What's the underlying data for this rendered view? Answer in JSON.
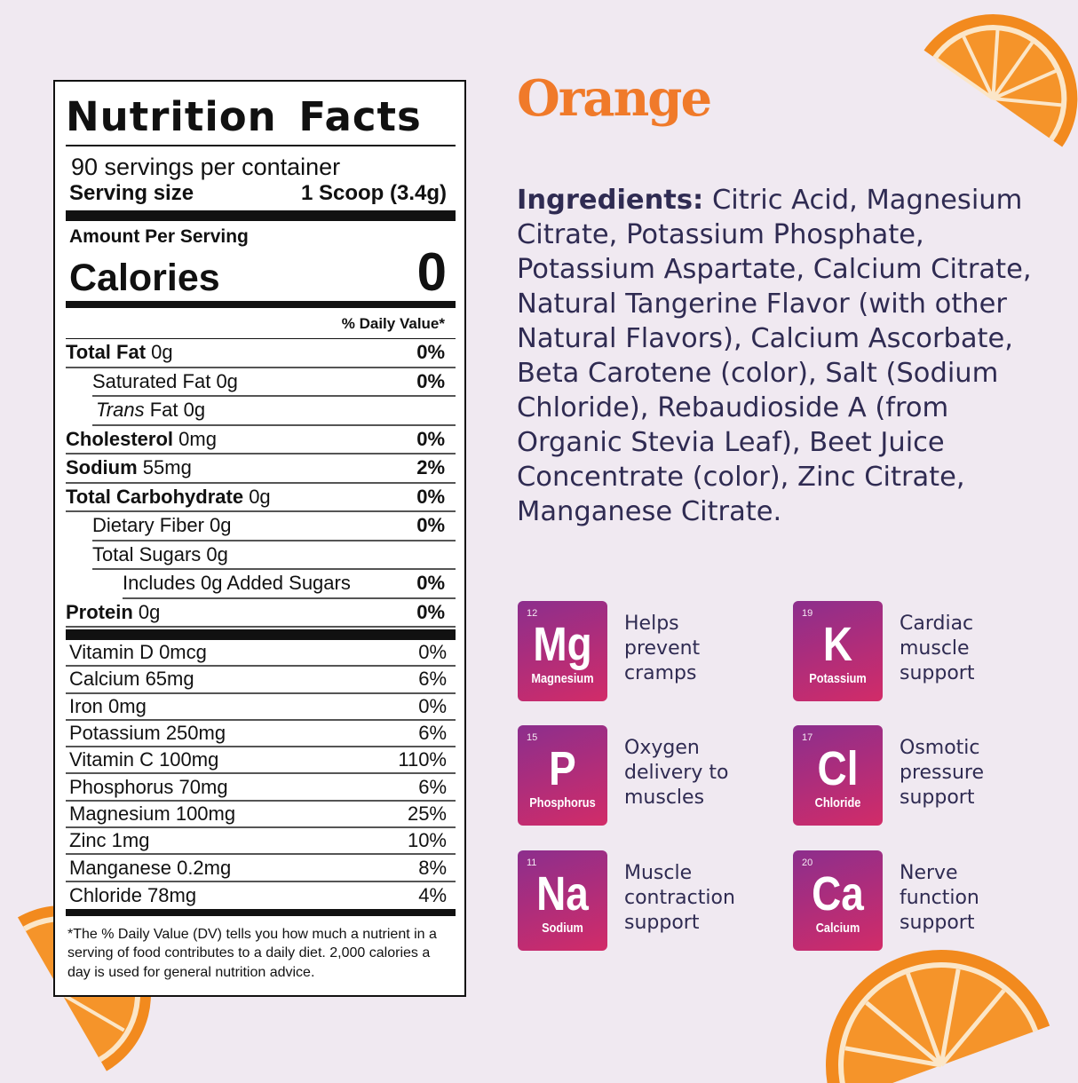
{
  "label": {
    "title": "Nutrition Facts",
    "servings": "90 servings per container",
    "serving_size_label": "Serving size",
    "serving_size_value": "1 Scoop (3.4g)",
    "amount_per_serving": "Amount Per Serving",
    "calories_label": "Calories",
    "calories_value": "0",
    "daily_value_header": "% Daily Value*",
    "nutrients": [
      {
        "name": "Total Fat",
        "amount": "0g",
        "dv": "0%"
      },
      {
        "name": "Saturated Fat",
        "amount": "0g",
        "dv": "0%"
      },
      {
        "name": "Trans",
        "amount": "Fat 0g",
        "dv": ""
      },
      {
        "name": "Cholesterol",
        "amount": "0mg",
        "dv": "0%"
      },
      {
        "name": "Sodium",
        "amount": "55mg",
        "dv": "2%"
      },
      {
        "name": "Total Carbohydrate",
        "amount": "0g",
        "dv": "0%"
      },
      {
        "name": "Dietary Fiber",
        "amount": "0g",
        "dv": "0%"
      },
      {
        "name": "Total Sugars",
        "amount": "0g",
        "dv": ""
      },
      {
        "name": "Includes 0g Added Sugars",
        "amount": "",
        "dv": "0%"
      },
      {
        "name": "Protein",
        "amount": "0g",
        "dv": "0%"
      }
    ],
    "vitamins": [
      {
        "name": "Vitamin D 0mcg",
        "dv": "0%"
      },
      {
        "name": "Calcium 65mg",
        "dv": "6%"
      },
      {
        "name": "Iron 0mg",
        "dv": "0%"
      },
      {
        "name": "Potassium 250mg",
        "dv": "6%"
      },
      {
        "name": "Vitamin C 100mg",
        "dv": "110%"
      },
      {
        "name": "Phosphorus 70mg",
        "dv": "6%"
      },
      {
        "name": "Magnesium 100mg",
        "dv": "25%"
      },
      {
        "name": "Zinc 1mg",
        "dv": "10%"
      },
      {
        "name": "Manganese 0.2mg",
        "dv": "8%"
      },
      {
        "name": "Chloride 78mg",
        "dv": "4%"
      }
    ],
    "footnote_star": "*",
    "footnote": "The % Daily Value (DV) tells you how much a nutrient in a serving of food contributes to a daily diet. 2,000 calories a day is used for general nutrition advice."
  },
  "flavor": "Orange",
  "ingredients_label": "Ingredients:",
  "ingredients": " Citric Acid, Magnesium Citrate, Potassium Phosphate, Potassium Aspartate, Calcium Citrate, Natural Tangerine Flavor (with other Natural Flavors), Calcium Ascorbate, Beta Carotene (color), Salt (Sodium Chloride), Rebaudioside A (from Organic Stevia Leaf), Beet Juice Concentrate (color), Zinc Citrate, Manganese Citrate.",
  "elements": [
    {
      "number": "12",
      "symbol": "Mg",
      "name": "Magnesium",
      "benefit": "Helps prevent cramps"
    },
    {
      "number": "19",
      "symbol": "K",
      "name": "Potassium",
      "benefit": "Cardiac muscle support"
    },
    {
      "number": "15",
      "symbol": "P",
      "name": "Phosphorus",
      "benefit": "Oxygen delivery to muscles"
    },
    {
      "number": "17",
      "symbol": "Cl",
      "name": "Chloride",
      "benefit": "Osmotic pressure support"
    },
    {
      "number": "11",
      "symbol": "Na",
      "name": "Sodium",
      "benefit": "Muscle contraction support"
    },
    {
      "number": "20",
      "symbol": "Ca",
      "name": "Calcium",
      "benefit": "Nerve function support"
    }
  ],
  "colors": {
    "flavor": "#f07a2a",
    "text": "#2f2b52",
    "tile_start": "#8c2e8d",
    "tile_end": "#d22c68",
    "background": "#f0e9f1"
  }
}
